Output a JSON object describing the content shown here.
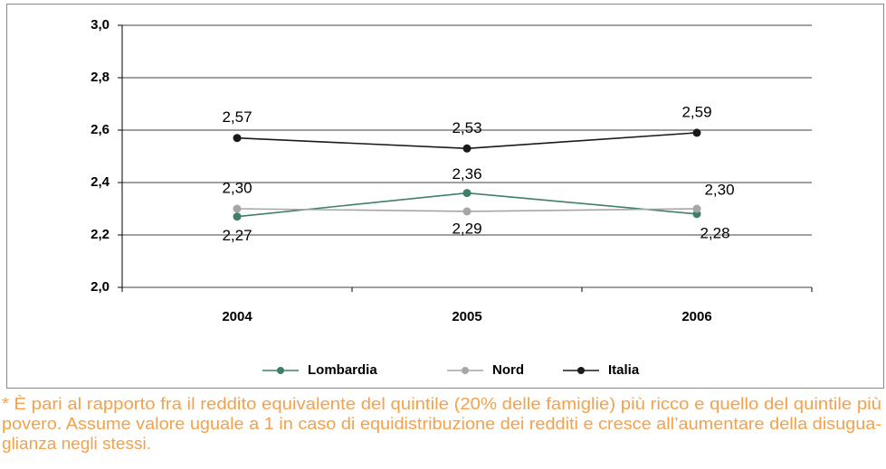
{
  "chart_data": {
    "type": "line",
    "categories": [
      "2004",
      "2005",
      "2006"
    ],
    "series": [
      {
        "name": "Lombardia",
        "color": "#3f7f66",
        "values": [
          2.27,
          2.36,
          2.28
        ],
        "value_labels": [
          "2,27",
          "2,36",
          "2,28"
        ]
      },
      {
        "name": "Nord",
        "color": "#a6a6a6",
        "values": [
          2.3,
          2.29,
          2.3
        ],
        "value_labels": [
          "2,30",
          "2,29",
          "2,30"
        ]
      },
      {
        "name": "Italia",
        "color": "#1a1a1a",
        "values": [
          2.57,
          2.53,
          2.59
        ],
        "value_labels": [
          "2,57",
          "2,53",
          "2,59"
        ]
      }
    ],
    "ylim": [
      2.0,
      3.0
    ],
    "yticks": [
      {
        "value": 2.0,
        "label": "2,0"
      },
      {
        "value": 2.2,
        "label": "2,2"
      },
      {
        "value": 2.4,
        "label": "2,4"
      },
      {
        "value": 2.6,
        "label": "2,6"
      },
      {
        "value": 2.8,
        "label": "2,8"
      },
      {
        "value": 3.0,
        "label": "3,0"
      }
    ],
    "grid": true,
    "legend": "bottom",
    "footnote": [
      "* È pari al rapporto fra il reddito equivalente del quintile (20% delle famiglie) più ricco e quello del quintile più",
      "povero. Assume valore uguale a 1 in caso di equidistribuzione dei redditi e cresce all’aumentare della disugua-",
      "glianza negli stessi."
    ]
  }
}
